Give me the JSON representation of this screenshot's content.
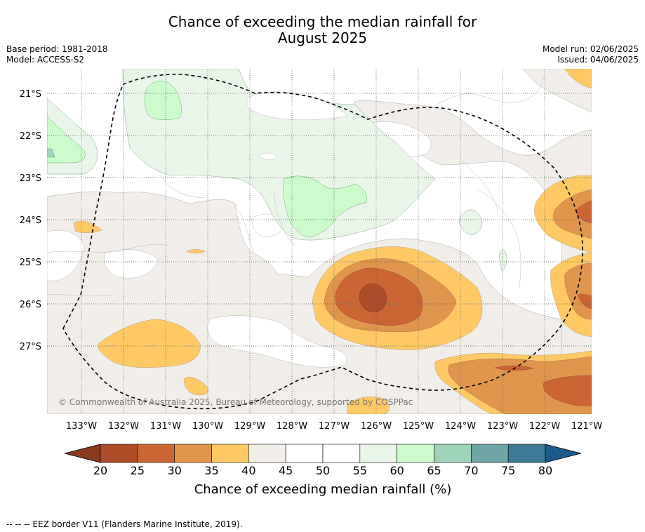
{
  "title": {
    "line1": "Chance of exceeding the median rainfall for",
    "line2": "August 2025"
  },
  "meta": {
    "base_period": "Base period: 1981-2018",
    "model": "Model: ACCESS-S2",
    "model_run": "Model run: 02/06/2025",
    "issued": "Issued: 04/06/2025"
  },
  "map": {
    "lat_labels": [
      "21°S",
      "22°S",
      "23°S",
      "24°S",
      "25°S",
      "26°S",
      "27°S"
    ],
    "lon_labels": [
      "133°W",
      "132°W",
      "131°W",
      "130°W",
      "129°W",
      "128°W",
      "127°W",
      "126°W",
      "125°W",
      "124°W",
      "123°W",
      "122°W",
      "121°W"
    ],
    "copyright": "© Commonwealth of Australia 2025, Bureau of Meteorology, supported by COSPPac",
    "eez_border": "dashed"
  },
  "colorbar": {
    "label": "Chance of exceeding median rainfall (%)",
    "ticks": [
      "20",
      "25",
      "30",
      "35",
      "40",
      "45",
      "50",
      "55",
      "60",
      "65",
      "70",
      "75",
      "80"
    ],
    "colors": [
      "#ae4b28",
      "#cb6634",
      "#e0954c",
      "#fec964",
      "#f1ede8",
      "#ffffff",
      "#ffffff",
      "#e9f5e9",
      "#ccfccc",
      "#9cd3b9",
      "#6fa6a6",
      "#3e7995"
    ],
    "under_color": "#8b3a1f",
    "over_color": "#1d5a8c"
  },
  "footer": {
    "legend_symbol": "--  --  --",
    "legend_text": "EEZ border V11 (Flanders Marine Institute, 2019)."
  }
}
